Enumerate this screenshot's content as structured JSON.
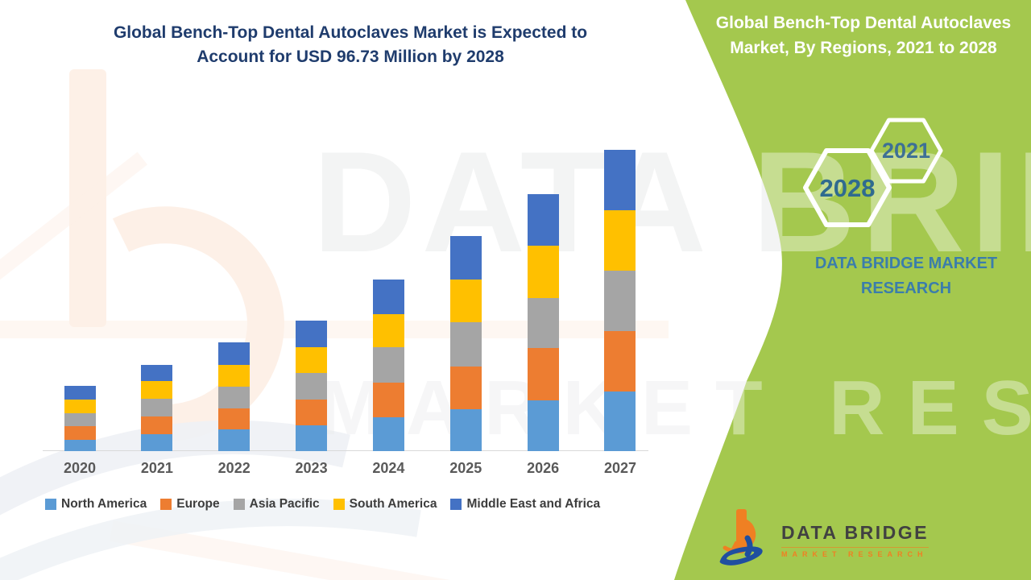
{
  "main": {
    "title": "Global Bench-Top Dental Autoclaves Market is Expected to\nAccount for USD 96.73 Million by 2028"
  },
  "side_panel": {
    "bg_color": "#a4c84e",
    "title": "Global Bench-Top Dental Autoclaves\nMarket, By Regions, 2021 to 2028",
    "hexagons": [
      {
        "label": "2021",
        "label_color": "#3d7095"
      },
      {
        "label": "2028",
        "label_color": "#2f6b8f"
      }
    ],
    "brand_text": "DATA BRIDGE MARKET\nRESEARCH",
    "brand_text_color": "#3b7dab",
    "logo": {
      "name": "DATA BRIDGE",
      "tagline": "MARKET RESEARCH",
      "orange": "#ef8023",
      "blue": "#1f4fa0"
    }
  },
  "watermark": {
    "line1": "DATA BRIDGE",
    "line2": "MARKET RESEARCH"
  },
  "colors": {
    "title_navy": "#1f3c6d",
    "axis_line": "#d9d9d9",
    "year_label": "#595959",
    "legend_text": "#3d3d3d"
  },
  "chart_data": {
    "type": "bar",
    "stacked": true,
    "title": "Global Bench-Top Dental Autoclaves Market is Expected to Account for USD 96.73 Million by 2028",
    "xlabel": "",
    "ylabel": "",
    "y_axis_visible": false,
    "grid": false,
    "legend_position": "bottom",
    "units_note": "No y-axis scale is shown in the figure; values are relative units proportional to measured bar-segment pixel heights.",
    "categories": [
      "2020",
      "2021",
      "2022",
      "2023",
      "2024",
      "2025",
      "2026",
      "2027"
    ],
    "series": [
      {
        "name": "North America",
        "color": "#5b9bd5",
        "values": [
          14,
          21,
          27,
          32,
          42,
          52,
          63,
          74
        ]
      },
      {
        "name": "Europe",
        "color": "#ed7d31",
        "values": [
          17,
          22,
          26,
          32,
          43,
          53,
          65,
          75
        ]
      },
      {
        "name": "Asia Pacific",
        "color": "#a5a5a5",
        "values": [
          16,
          22,
          27,
          33,
          44,
          55,
          62,
          75
        ]
      },
      {
        "name": "South America",
        "color": "#ffc000",
        "values": [
          17,
          22,
          27,
          32,
          41,
          53,
          65,
          75
        ]
      },
      {
        "name": "Middle East and Africa",
        "color": "#4472c4",
        "values": [
          17,
          20,
          28,
          33,
          43,
          54,
          64,
          75
        ]
      }
    ],
    "stack_totals": [
      81,
      107,
      135,
      162,
      213,
      267,
      319,
      374
    ]
  }
}
